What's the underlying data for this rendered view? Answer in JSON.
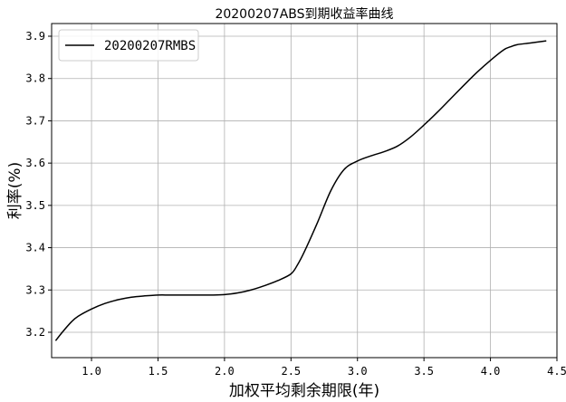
{
  "chart_data": {
    "type": "line",
    "title": "20200207ABS到期收益率曲线",
    "xlabel": "加权平均剩余期限(年)",
    "ylabel": "利率(%)",
    "xlim": [
      0.7,
      4.5
    ],
    "ylim": [
      3.14,
      3.93
    ],
    "xticks": [
      1.0,
      1.5,
      2.0,
      2.5,
      3.0,
      3.5,
      4.0,
      4.5
    ],
    "xtick_labels": [
      "1.0",
      "1.5",
      "2.0",
      "2.5",
      "3.0",
      "3.5",
      "4.0",
      "4.5"
    ],
    "yticks": [
      3.2,
      3.3,
      3.4,
      3.5,
      3.6,
      3.7,
      3.8,
      3.9
    ],
    "ytick_labels": [
      "3.2",
      "3.3",
      "3.4",
      "3.5",
      "3.6",
      "3.7",
      "3.8",
      "3.9"
    ],
    "grid": true,
    "legend_position": "top-left",
    "series": [
      {
        "name": "20200207RMBS",
        "color": "#000000",
        "x": [
          0.73,
          0.78,
          0.85,
          0.9,
          1.0,
          1.1,
          1.2,
          1.3,
          1.4,
          1.5,
          1.6,
          1.8,
          1.9,
          2.0,
          2.1,
          2.2,
          2.3,
          2.4,
          2.5,
          2.55,
          2.6,
          2.7,
          2.8,
          2.9,
          3.0,
          3.1,
          3.2,
          3.3,
          3.4,
          3.5,
          3.6,
          3.7,
          3.8,
          3.9,
          4.0,
          4.1,
          4.15,
          4.2,
          4.3,
          4.42
        ],
        "y": [
          3.18,
          3.2,
          3.225,
          3.238,
          3.255,
          3.268,
          3.277,
          3.283,
          3.286,
          3.288,
          3.288,
          3.288,
          3.288,
          3.289,
          3.293,
          3.3,
          3.31,
          3.322,
          3.338,
          3.36,
          3.39,
          3.46,
          3.535,
          3.585,
          3.605,
          3.617,
          3.627,
          3.64,
          3.662,
          3.69,
          3.72,
          3.752,
          3.784,
          3.815,
          3.843,
          3.868,
          3.875,
          3.88,
          3.884,
          3.889
        ]
      }
    ]
  }
}
